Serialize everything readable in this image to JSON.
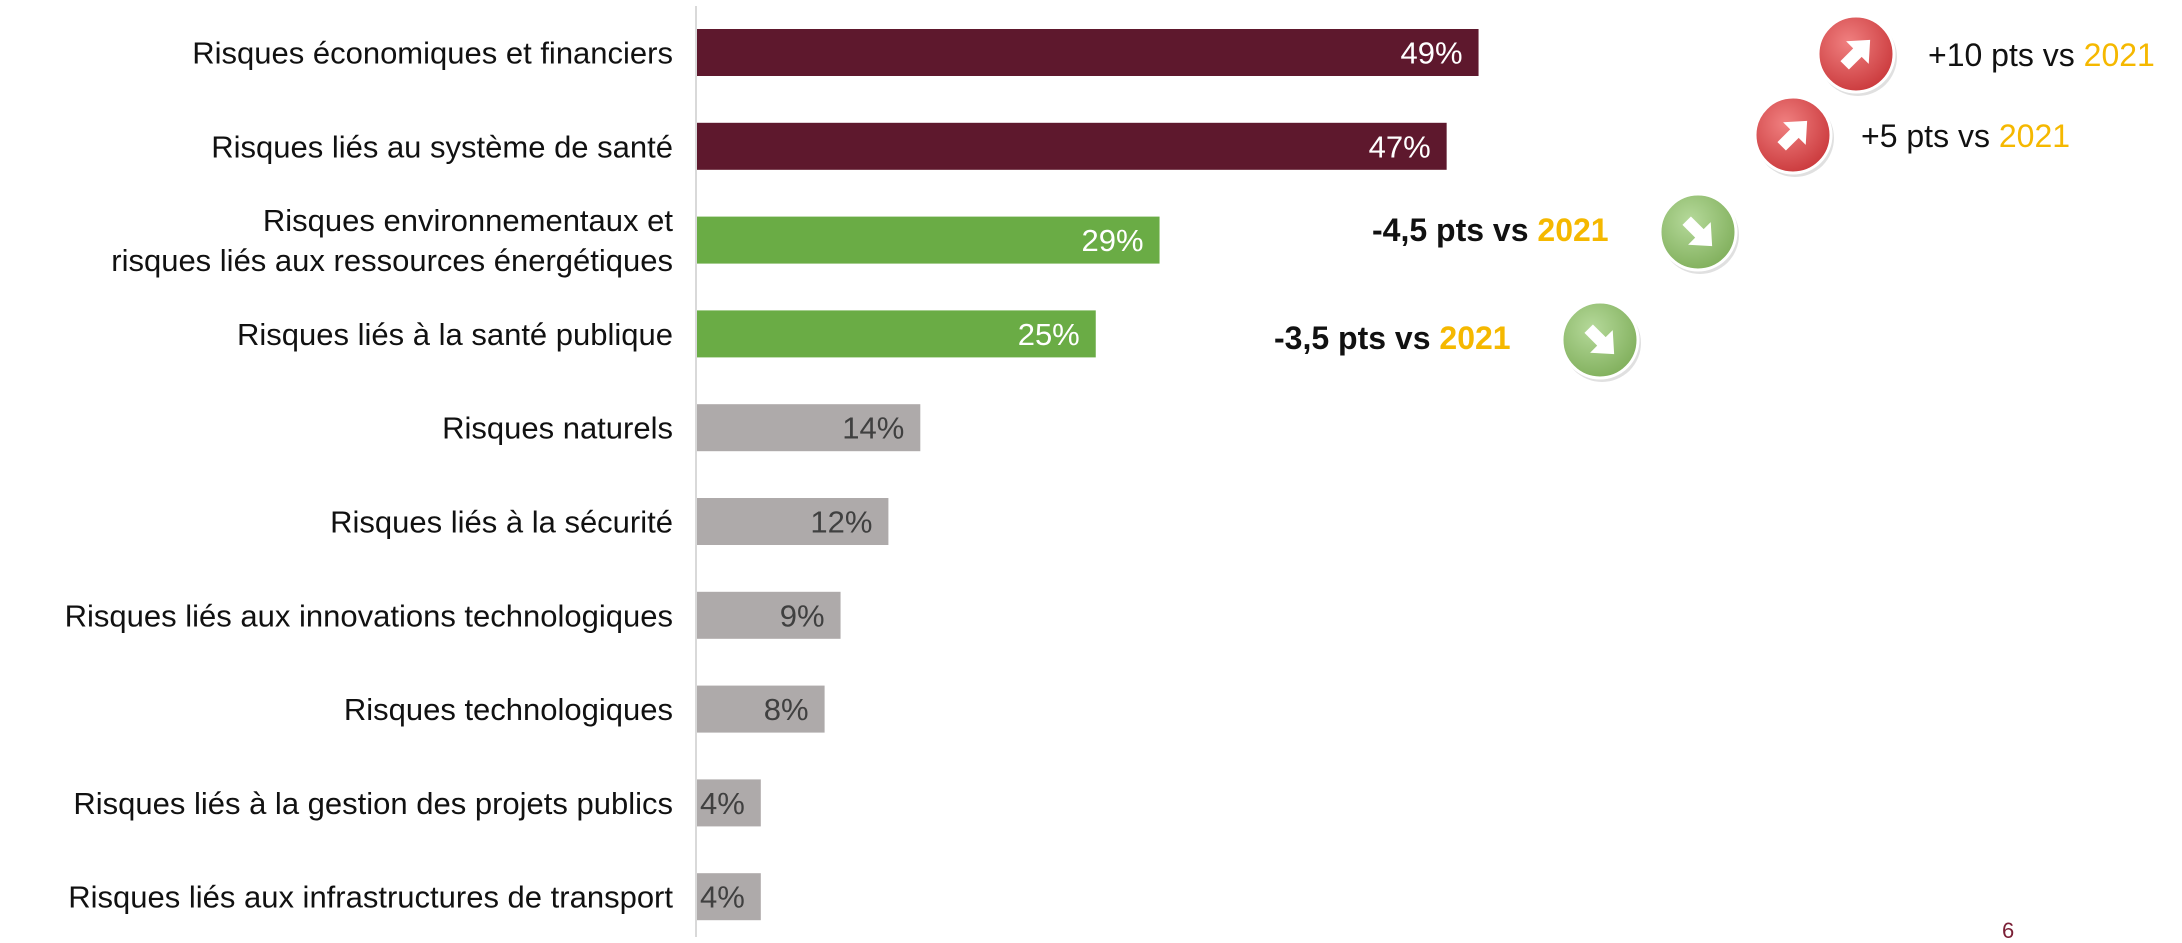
{
  "chart_data": {
    "type": "bar",
    "orientation": "horizontal",
    "categories": [
      [
        "Risques économiques et financiers"
      ],
      [
        "Risques liés au système de santé"
      ],
      [
        "Risques environnementaux et",
        "risques liés aux ressources énergétiques"
      ],
      [
        "Risques liés à la santé publique"
      ],
      [
        "Risques naturels"
      ],
      [
        "Risques liés à la sécurité"
      ],
      [
        "Risques liés aux innovations technologiques"
      ],
      [
        "Risques technologiques"
      ],
      [
        "Risques liés à la gestion des projets publics"
      ],
      [
        "Risques liés aux infrastructures de transport"
      ]
    ],
    "values": [
      49,
      47,
      29,
      25,
      14,
      12,
      9,
      8,
      4,
      4
    ],
    "value_labels": [
      "49%",
      "47%",
      "29%",
      "25%",
      "14%",
      "12%",
      "9%",
      "8%",
      "4%",
      "4%"
    ],
    "bar_colors": [
      "#5e182d",
      "#5e182d",
      "#6aac45",
      "#6aac45",
      "#aeaaaa",
      "#aeaaaa",
      "#aeaaaa",
      "#aeaaaa",
      "#aeaaaa",
      "#aeaaaa"
    ],
    "label_colors": [
      "#ffffff",
      "#ffffff",
      "#ffffff",
      "#ffffff",
      "#404040",
      "#404040",
      "#404040",
      "#404040",
      "#404040",
      "#404040"
    ],
    "xlim": [
      0,
      50
    ],
    "grid": false,
    "annotations": [
      {
        "index": 0,
        "direction": "up",
        "delta": "+10 pts vs ",
        "year": "2021",
        "bold": false
      },
      {
        "index": 1,
        "direction": "up",
        "delta": "+5 pts vs ",
        "year": "2021",
        "bold": false
      },
      {
        "index": 2,
        "direction": "down",
        "delta": "-4,5 pts vs ",
        "year": "2021",
        "bold": true
      },
      {
        "index": 3,
        "direction": "down",
        "delta": "-3,5 pts vs ",
        "year": "2021",
        "bold": true
      }
    ],
    "colors": {
      "up_arrow": "#d9534f",
      "down_arrow": "#8fbf6a",
      "year_highlight": "#f5b800",
      "axis": "#d9d9d9"
    }
  },
  "footer": {
    "page_number": "6"
  }
}
